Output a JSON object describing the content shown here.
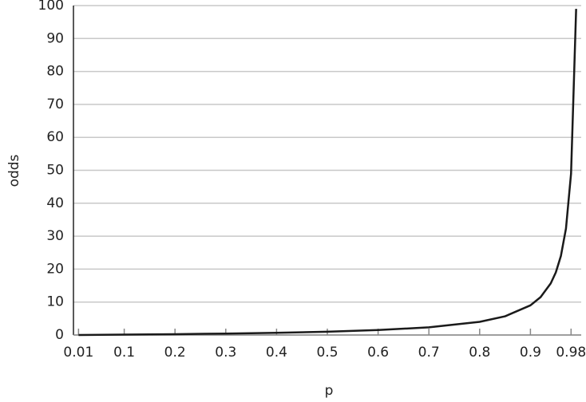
{
  "chart_data": {
    "type": "line",
    "x_label": "p",
    "y_label": "odds",
    "x": [
      0.01,
      0.1,
      0.2,
      0.3,
      0.4,
      0.5,
      0.6,
      0.7,
      0.8,
      0.85,
      0.9,
      0.92,
      0.94,
      0.95,
      0.96,
      0.97,
      0.98,
      0.99
    ],
    "series": [
      {
        "color": "#1a1a1a",
        "values": [
          0.01,
          0.11,
          0.25,
          0.43,
          0.67,
          1,
          1.5,
          2.33,
          4,
          5.67,
          9,
          11.5,
          15.67,
          19,
          24,
          32.33,
          49,
          99
        ]
      }
    ],
    "xlim": [
      0,
      1
    ],
    "ylim": [
      0,
      100
    ],
    "xticks": [
      0.01,
      0.1,
      0.2,
      0.3,
      0.4,
      0.5,
      0.6,
      0.7,
      0.8,
      0.9,
      0.98
    ],
    "yticks": [
      0,
      10,
      20,
      30,
      40,
      50,
      60,
      70,
      80,
      90,
      100
    ],
    "grid": true
  }
}
